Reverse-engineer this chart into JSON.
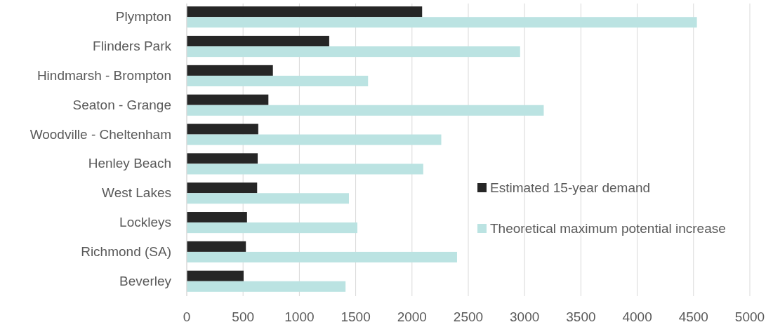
{
  "chart_data": {
    "type": "bar",
    "orientation": "horizontal",
    "categories": [
      "Plympton",
      "Flinders Park",
      "Hindmarsh - Brompton",
      "Seaton - Grange",
      "Woodville - Cheltenham",
      "Henley Beach",
      "West Lakes",
      "Lockleys",
      "Richmond (SA)",
      "Beverley"
    ],
    "series": [
      {
        "name": "Estimated 15-year demand",
        "color": "#262626",
        "values": [
          2090,
          1265,
          765,
          725,
          635,
          630,
          625,
          535,
          525,
          505
        ]
      },
      {
        "name": "Theoretical maximum potential increase",
        "color": "#bbe3e2",
        "values": [
          4530,
          2960,
          1610,
          3170,
          2260,
          2100,
          1440,
          1515,
          2400,
          1410
        ]
      }
    ],
    "xlim": [
      0,
      5000
    ],
    "xticks": [
      0,
      500,
      1000,
      1500,
      2000,
      2500,
      3000,
      3500,
      4000,
      4500,
      5000
    ],
    "grid": "x",
    "legend": "right"
  }
}
